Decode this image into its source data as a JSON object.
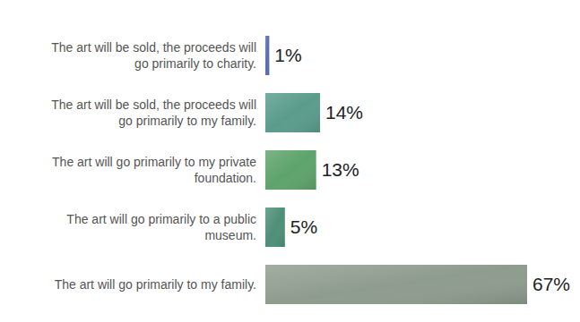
{
  "chart_data": {
    "type": "bar",
    "orientation": "horizontal",
    "categories": [
      "The art will be sold, the proceeds will go primarily to charity.",
      "The art will be sold, the proceeds will go primarily to my family.",
      "The art will go primarily to my private foundation.",
      "The art will go primarily to a public museum.",
      "The art will go primarily to my family."
    ],
    "values": [
      1,
      14,
      13,
      5,
      67
    ],
    "value_labels": [
      "1%",
      "14%",
      "13%",
      "5%",
      "67%"
    ],
    "colors": [
      "#5b6db0",
      "#5a9c8c",
      "#5ea36c",
      "#4e8f78",
      "#8e9c8e"
    ],
    "ylim": [
      0,
      67
    ],
    "data_labels": true,
    "grid": false
  }
}
